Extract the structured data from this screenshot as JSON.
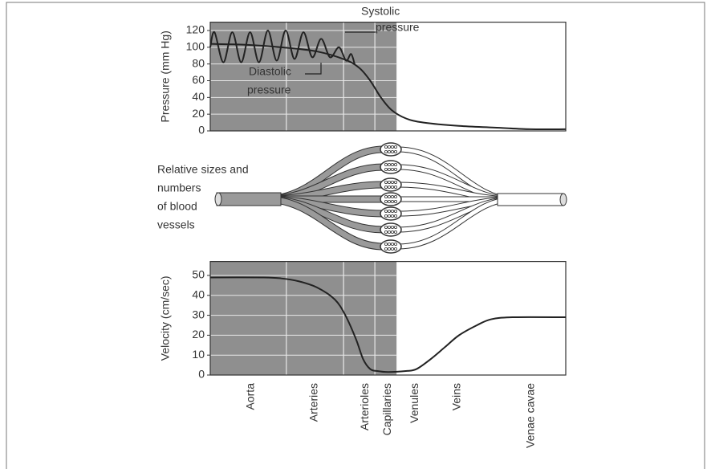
{
  "chart_data": [
    {
      "type": "line",
      "ylabel": "Pressure (mm Hg)",
      "xlim": [
        0,
        100
      ],
      "ylim": [
        0,
        130
      ],
      "yticks": [
        0,
        20,
        40,
        60,
        80,
        100,
        120
      ],
      "shaded_xlim": [
        0,
        52.4
      ],
      "xgrid": [
        21.4,
        37.5,
        46.3
      ],
      "series": [
        {
          "color": "#222222",
          "x": [
            0,
            1.2,
            3.7,
            6.2,
            8.7,
            11.2,
            13.7,
            16.2,
            18.7,
            21.2,
            23.7,
            26.2,
            28.7,
            31.2,
            33.7,
            36.2,
            38.2,
            39.6,
            40.6
          ],
          "values": [
            100,
            118,
            82,
            118,
            82,
            118,
            82,
            120,
            84,
            120,
            86,
            118,
            88,
            110,
            88,
            100,
            84,
            92,
            80
          ]
        },
        {
          "color": "#222222",
          "x": [
            0,
            10,
            20,
            30,
            38,
            42,
            45,
            48,
            51,
            55,
            60,
            70,
            80,
            90,
            100
          ],
          "values": [
            104,
            103,
            100,
            95,
            85,
            75,
            60,
            40,
            25,
            15,
            10,
            6,
            4,
            2,
            2
          ]
        }
      ],
      "annotations": [
        {
          "lines": [
            "Systolic",
            "pressure"
          ]
        },
        {
          "lines": [
            "Diastolic",
            "pressure"
          ]
        }
      ]
    },
    {
      "type": "line",
      "ylabel": "Velocity (cm/sec)",
      "xlim": [
        0,
        100
      ],
      "ylim": [
        0,
        57
      ],
      "yticks": [
        0,
        10,
        20,
        30,
        40,
        50
      ],
      "shaded_xlim": [
        0,
        52.4
      ],
      "xgrid": [
        21.4,
        37.5,
        46.3
      ],
      "xticks": [
        {
          "value": 11.5,
          "label": "Aorta"
        },
        {
          "value": 29.3,
          "label": "Arteries"
        },
        {
          "value": 43.6,
          "label": "Arterioles"
        },
        {
          "value": 49.9,
          "label": "Capillaries"
        },
        {
          "value": 57.6,
          "label": "Venules"
        },
        {
          "value": 69.5,
          "label": "Veins"
        },
        {
          "value": 90.3,
          "label": "Venae cavae"
        }
      ],
      "series": [
        {
          "color": "#222222",
          "x": [
            0,
            15,
            20,
            25,
            30,
            35,
            38,
            41,
            43,
            45,
            47,
            50,
            55,
            58,
            62,
            66,
            70,
            75,
            79,
            85,
            100
          ],
          "values": [
            49,
            49,
            48.5,
            47,
            44,
            38,
            30,
            18,
            8,
            3,
            2,
            1.5,
            2,
            3,
            8,
            14,
            20,
            25,
            28,
            29,
            29
          ]
        }
      ]
    }
  ],
  "diagram": {
    "label_lines": [
      "Relative sizes and",
      "numbers",
      "of blood",
      "vessels"
    ]
  }
}
